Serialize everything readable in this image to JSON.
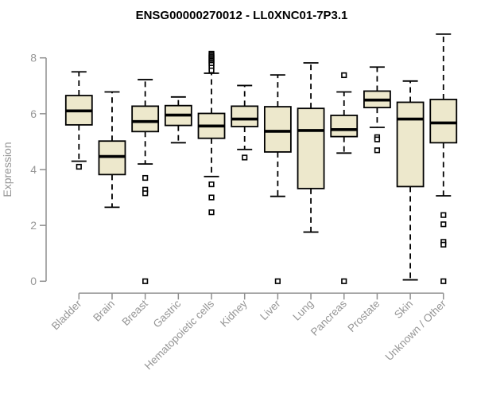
{
  "chart_data": {
    "type": "boxplot",
    "title": "ENSG00000270012 - LL0XNC01-7P3.1",
    "ylabel": "Expression",
    "xlabel": "",
    "ylim": [
      0,
      8
    ],
    "yticks": [
      0,
      2,
      4,
      6,
      8
    ],
    "grid": false,
    "legend": "none",
    "whisker_style": "dashed",
    "outlier_marker": "open-square",
    "categories": [
      "Bladder",
      "Brain",
      "Breast",
      "Gastric",
      "Hematopoietic cells",
      "Kidney",
      "Liver",
      "Lung",
      "Pancreas",
      "Prostate",
      "Skin",
      "Unknown / Other"
    ],
    "series": [
      {
        "category": "Bladder",
        "whisker_low": 4.3,
        "q1": 5.6,
        "median": 6.1,
        "q3": 6.65,
        "whisker_high": 7.5,
        "outliers": [
          4.1
        ]
      },
      {
        "category": "Brain",
        "whisker_low": 2.65,
        "q1": 3.82,
        "median": 4.47,
        "q3": 5.02,
        "whisker_high": 6.78,
        "outliers": []
      },
      {
        "category": "Breast",
        "whisker_low": 4.2,
        "q1": 5.36,
        "median": 5.72,
        "q3": 6.27,
        "whisker_high": 7.22,
        "outliers": [
          3.7,
          3.28,
          3.15,
          0.0
        ]
      },
      {
        "category": "Gastric",
        "whisker_low": 4.96,
        "q1": 5.58,
        "median": 5.95,
        "q3": 6.29,
        "whisker_high": 6.6,
        "outliers": []
      },
      {
        "category": "Hematopoietic cells",
        "whisker_low": 3.75,
        "q1": 5.12,
        "median": 5.56,
        "q3": 6.01,
        "whisker_high": 7.45,
        "outliers": [
          8.15,
          8.1,
          8.05,
          8.0,
          7.95,
          7.9,
          7.85,
          7.8,
          7.75,
          7.65,
          7.55,
          3.47,
          3.0,
          2.47
        ]
      },
      {
        "category": "Kidney",
        "whisker_low": 4.72,
        "q1": 5.54,
        "median": 5.81,
        "q3": 6.27,
        "whisker_high": 7.01,
        "outliers": [
          4.43
        ]
      },
      {
        "category": "Liver",
        "whisker_low": 3.04,
        "q1": 4.63,
        "median": 5.37,
        "q3": 6.25,
        "whisker_high": 7.39,
        "outliers": [
          0.0
        ]
      },
      {
        "category": "Lung",
        "whisker_low": 1.76,
        "q1": 3.32,
        "median": 5.4,
        "q3": 6.19,
        "whisker_high": 7.82,
        "outliers": []
      },
      {
        "category": "Pancreas",
        "whisker_low": 4.59,
        "q1": 5.18,
        "median": 5.43,
        "q3": 5.94,
        "whisker_high": 6.78,
        "outliers": [
          7.38,
          0.0
        ]
      },
      {
        "category": "Prostate",
        "whisker_low": 5.51,
        "q1": 6.22,
        "median": 6.49,
        "q3": 6.81,
        "whisker_high": 7.67,
        "outliers": [
          5.16,
          5.08,
          4.69
        ]
      },
      {
        "category": "Skin",
        "whisker_low": 0.05,
        "q1": 3.39,
        "median": 5.81,
        "q3": 6.41,
        "whisker_high": 7.17,
        "outliers": []
      },
      {
        "category": "Unknown / Other",
        "whisker_low": 3.06,
        "q1": 4.96,
        "median": 5.67,
        "q3": 6.51,
        "whisker_high": 8.85,
        "outliers": [
          2.37,
          2.04,
          1.41,
          1.31,
          0.0
        ]
      }
    ],
    "colors": {
      "box_fill": "#EDE8CC",
      "box_stroke": "#000000",
      "median": "#000000",
      "whisker": "#000000",
      "outlier_stroke": "#000000",
      "outlier_fill": "#ffffff",
      "axis_line": "#8f8f8f",
      "axis_text": "#969696",
      "title": "#000000",
      "background": "#ffffff"
    }
  }
}
